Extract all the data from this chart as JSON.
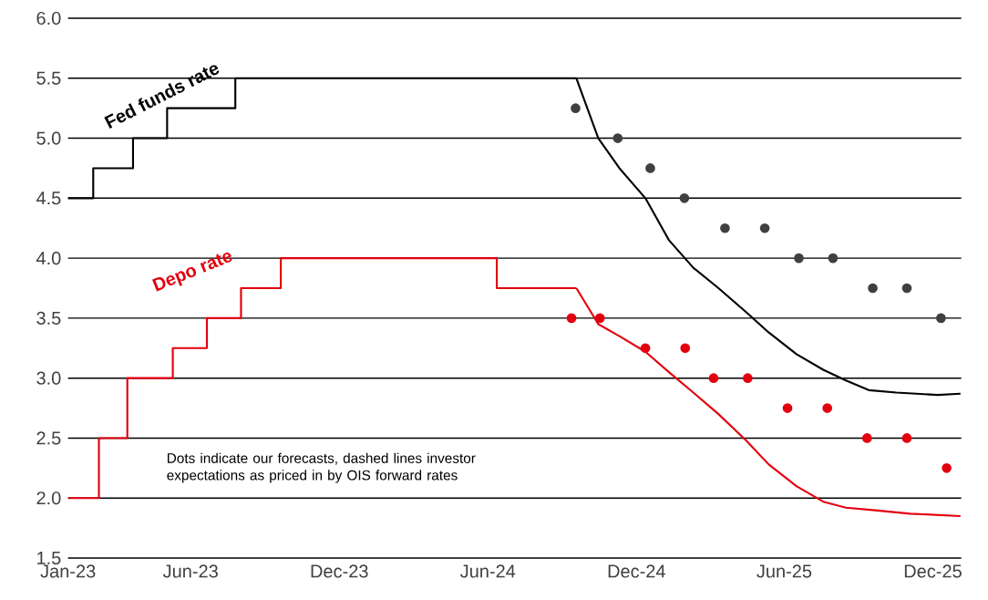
{
  "chart_data": {
    "type": "line",
    "xlim": [
      "2023-01-01",
      "2026-01-05"
    ],
    "ylim": [
      1.5,
      6.0
    ],
    "xticks": [
      {
        "value": "2023-01-01",
        "label": "Jan-23"
      },
      {
        "value": "2023-06-01",
        "label": "Jun-23"
      },
      {
        "value": "2023-12-01",
        "label": "Dec-23"
      },
      {
        "value": "2024-06-01",
        "label": "Jun-24"
      },
      {
        "value": "2024-12-01",
        "label": "Dec-24"
      },
      {
        "value": "2025-06-01",
        "label": "Jun-25"
      },
      {
        "value": "2025-12-01",
        "label": "Dec-25"
      }
    ],
    "yticks": [
      {
        "value": 1.5,
        "label": "1.5"
      },
      {
        "value": 2.0,
        "label": "2.0"
      },
      {
        "value": 2.5,
        "label": "2.5"
      },
      {
        "value": 3.0,
        "label": "3.0"
      },
      {
        "value": 3.5,
        "label": "3.5"
      },
      {
        "value": 4.0,
        "label": "4.0"
      },
      {
        "value": 4.5,
        "label": "4.5"
      },
      {
        "value": 5.0,
        "label": "5.0"
      },
      {
        "value": 5.5,
        "label": "5.5"
      },
      {
        "value": 6.0,
        "label": "6.0"
      }
    ],
    "grid": "y",
    "annotations": [
      "Dots indicate our forecasts, dashed lines investor expectations as priced in by OIS forward rates"
    ],
    "series": [
      {
        "name": "Fed funds rate",
        "type": "step",
        "color": "#000000",
        "x": [
          "2023-01-01",
          "2023-02-01",
          "2023-03-22",
          "2023-05-03",
          "2023-07-26",
          "2024-09-18"
        ],
        "values": [
          4.5,
          4.75,
          5.0,
          5.25,
          5.5,
          5.5
        ]
      },
      {
        "name": "Depo rate",
        "type": "step",
        "color": "#e3000f",
        "x": [
          "2023-01-01",
          "2023-02-08",
          "2023-03-15",
          "2023-05-10",
          "2023-06-21",
          "2023-08-02",
          "2023-09-20",
          "2024-06-12",
          "2024-09-18"
        ],
        "values": [
          2.0,
          2.5,
          3.0,
          3.25,
          3.5,
          3.75,
          4.0,
          3.75,
          3.75
        ]
      },
      {
        "color": "#000000",
        "x": [
          "2024-09-18",
          "2024-10-15",
          "2024-11-10",
          "2024-12-12",
          "2025-01-10",
          "2025-02-09",
          "2025-03-12",
          "2025-04-15",
          "2025-05-13",
          "2025-06-16",
          "2025-07-19",
          "2025-08-16",
          "2025-09-13",
          "2025-10-17",
          "2025-12-07",
          "2026-01-04"
        ],
        "values": [
          5.5,
          5.0,
          4.75,
          4.5,
          4.15,
          3.92,
          3.75,
          3.55,
          3.38,
          3.2,
          3.07,
          2.98,
          2.9,
          2.88,
          2.86,
          2.87
        ]
      },
      {
        "color": "#e3000f",
        "x": [
          "2024-09-18",
          "2024-10-15",
          "2024-11-10",
          "2024-12-12",
          "2025-01-10",
          "2025-02-09",
          "2025-03-12",
          "2025-04-15",
          "2025-05-13",
          "2025-06-16",
          "2025-07-19",
          "2025-08-16",
          "2025-09-18",
          "2025-11-03",
          "2026-01-04"
        ],
        "values": [
          3.75,
          3.45,
          3.35,
          3.22,
          3.05,
          2.88,
          2.7,
          2.48,
          2.28,
          2.1,
          1.97,
          1.92,
          1.9,
          1.87,
          1.85
        ]
      },
      {
        "type": "scatter",
        "marker": "circle",
        "color": "#404040",
        "x": [
          "2024-09-17",
          "2024-11-08",
          "2024-12-18",
          "2025-01-29",
          "2025-03-20",
          "2025-05-08",
          "2025-06-19",
          "2025-07-31",
          "2025-09-18",
          "2025-10-30",
          "2025-12-11"
        ],
        "values": [
          5.25,
          5.0,
          4.75,
          4.5,
          4.25,
          4.25,
          4.0,
          4.0,
          3.75,
          3.75,
          3.5
        ]
      },
      {
        "type": "scatter",
        "marker": "circle",
        "color": "#e3000f",
        "x": [
          "2024-09-12",
          "2024-10-17",
          "2024-12-12",
          "2025-01-30",
          "2025-03-06",
          "2025-04-17",
          "2025-06-05",
          "2025-07-24",
          "2025-09-11",
          "2025-10-30",
          "2025-12-18"
        ],
        "values": [
          3.5,
          3.5,
          3.25,
          3.25,
          3.0,
          3.0,
          2.75,
          2.75,
          2.5,
          2.5,
          2.25
        ]
      }
    ]
  }
}
